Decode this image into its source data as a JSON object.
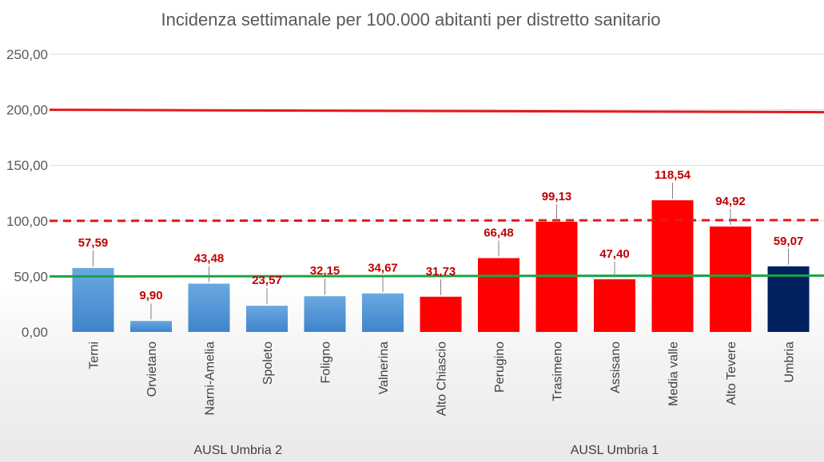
{
  "chart_data": {
    "type": "bar",
    "title": "Incidenza settimanale per 100.000 abitanti per distretto sanitario",
    "categories": [
      "Terni",
      "Orvietano",
      "Narni-Amelia",
      "Spoleto",
      "Foligno",
      "Valnerina",
      "Alto Chiascio",
      "Perugino",
      "Trasimeno",
      "Assisano",
      "Media valle",
      "Alto Tevere",
      "Umbria"
    ],
    "values": [
      57.59,
      9.9,
      43.48,
      23.57,
      32.15,
      34.67,
      31.73,
      66.48,
      99.13,
      47.4,
      118.54,
      94.92,
      59.07
    ],
    "value_labels": [
      "57,59",
      "9,90",
      "43,48",
      "23,57",
      "32,15",
      "34,67",
      "31,73",
      "66,48",
      "99,13",
      "47,40",
      "118,54",
      "94,92",
      "59,07"
    ],
    "bar_colors": [
      "#5b9bd5",
      "#5b9bd5",
      "#5b9bd5",
      "#5b9bd5",
      "#5b9bd5",
      "#5b9bd5",
      "#ff0000",
      "#ff0000",
      "#ff0000",
      "#ff0000",
      "#ff0000",
      "#ff0000",
      "#002060"
    ],
    "groups": [
      {
        "label": "AUSL Umbria 2",
        "categories": [
          "Terni",
          "Orvietano",
          "Narni-Amelia",
          "Spoleto",
          "Foligno",
          "Valnerina"
        ]
      },
      {
        "label": "AUSL Umbria 1",
        "categories": [
          "Alto Chiascio",
          "Perugino",
          "Trasimeno",
          "Assisano",
          "Media valle",
          "Alto Tevere",
          "Umbria"
        ]
      }
    ],
    "ylim": [
      0,
      250
    ],
    "yticks": [
      0,
      50,
      100,
      150,
      200,
      250
    ],
    "ytick_labels": [
      "0,00",
      "50,00",
      "100,00",
      "150,00",
      "200,00",
      "250,00"
    ],
    "grid": true,
    "reference_lines": [
      {
        "value": 200,
        "color": "#e31a1c",
        "style": "solid"
      },
      {
        "value": 100,
        "color": "#e31a1c",
        "style": "dashed"
      },
      {
        "value": 50,
        "color": "#1aa543",
        "style": "solid"
      }
    ]
  }
}
